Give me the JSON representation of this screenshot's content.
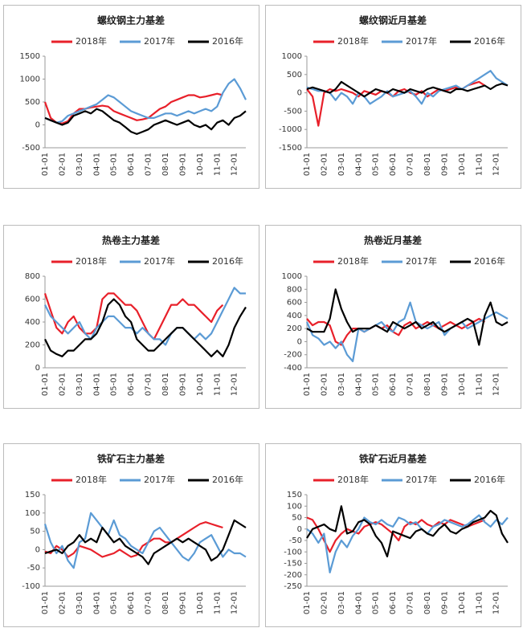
{
  "chart_data": [
    {
      "type": "line",
      "title": "螺纹钢主力基差",
      "categories": [
        "01-01",
        null,
        null,
        "02-01",
        null,
        null,
        "03-01",
        null,
        null,
        "04-01",
        null,
        null,
        "05-01",
        null,
        null,
        "06-01",
        null,
        null,
        "07-01",
        null,
        null,
        "08-01",
        null,
        null,
        "09-01",
        null,
        null,
        "10-01",
        null,
        null,
        "11-01",
        null,
        null,
        "12-01",
        null,
        null
      ],
      "ylim": [
        -500,
        1500
      ],
      "yticks": [
        -500,
        0,
        500,
        1000,
        1500
      ],
      "series": [
        {
          "name": "2018年",
          "color": "#e8202a",
          "values": [
            500,
            150,
            50,
            30,
            80,
            250,
            350,
            350,
            380,
            400,
            420,
            400,
            300,
            250,
            200,
            150,
            100,
            120,
            150,
            250,
            350,
            400,
            500,
            550,
            600,
            650,
            650,
            600,
            620,
            650,
            680,
            650,
            null,
            null,
            null,
            null
          ]
        },
        {
          "name": "2017年",
          "color": "#5b9bd5",
          "values": [
            150,
            100,
            50,
            80,
            200,
            250,
            300,
            350,
            400,
            450,
            550,
            650,
            600,
            500,
            400,
            300,
            250,
            200,
            150,
            150,
            200,
            250,
            250,
            200,
            250,
            300,
            250,
            300,
            350,
            300,
            400,
            700,
            900,
            1000,
            800,
            550
          ]
        },
        {
          "name": "2016年",
          "color": "#000000",
          "values": [
            150,
            100,
            50,
            0,
            50,
            200,
            250,
            300,
            250,
            350,
            300,
            200,
            100,
            50,
            -50,
            -150,
            -200,
            -150,
            -100,
            0,
            50,
            100,
            50,
            0,
            50,
            100,
            0,
            -50,
            0,
            -100,
            50,
            100,
            0,
            150,
            200,
            300
          ]
        }
      ]
    },
    {
      "type": "line",
      "title": "螺纹钢近月基差",
      "categories": [
        "01-01",
        null,
        null,
        "02-01",
        null,
        null,
        "03-01",
        null,
        null,
        "04-01",
        null,
        null,
        "05-01",
        null,
        null,
        "06-01",
        null,
        null,
        "07-01",
        null,
        null,
        "08-01",
        null,
        null,
        "09-01",
        null,
        null,
        "10-01",
        null,
        null,
        "11-01",
        null,
        null,
        "12-01",
        null,
        null
      ],
      "ylim": [
        -1500,
        1000
      ],
      "yticks": [
        -1500,
        -1000,
        -500,
        0,
        500,
        1000
      ],
      "series": [
        {
          "name": "2018年",
          "color": "#e8202a",
          "values": [
            100,
            -100,
            -900,
            0,
            100,
            50,
            100,
            50,
            0,
            -100,
            50,
            0,
            -50,
            50,
            0,
            -100,
            50,
            100,
            0,
            -50,
            50,
            -100,
            0,
            100,
            50,
            100,
            150,
            100,
            200,
            250,
            300,
            200,
            null,
            null,
            null,
            null
          ]
        },
        {
          "name": "2017年",
          "color": "#5b9bd5",
          "values": [
            150,
            100,
            50,
            50,
            0,
            -200,
            0,
            -100,
            -300,
            0,
            -100,
            -300,
            -200,
            -100,
            50,
            -100,
            -50,
            0,
            50,
            -100,
            -300,
            0,
            -100,
            50,
            100,
            150,
            200,
            100,
            200,
            300,
            400,
            500,
            600,
            400,
            300,
            200
          ]
        },
        {
          "name": "2016年",
          "color": "#000000",
          "values": [
            100,
            150,
            100,
            50,
            0,
            100,
            300,
            200,
            100,
            0,
            -100,
            0,
            100,
            50,
            0,
            100,
            50,
            0,
            100,
            50,
            0,
            100,
            150,
            100,
            50,
            0,
            100,
            100,
            50,
            100,
            150,
            200,
            100,
            200,
            250,
            200
          ]
        }
      ]
    },
    {
      "type": "line",
      "title": "热卷主力基差",
      "categories": [
        "01-01",
        null,
        null,
        "02-01",
        null,
        null,
        "03-01",
        null,
        null,
        "04-01",
        null,
        null,
        "05-01",
        null,
        null,
        "06-01",
        null,
        null,
        "07-01",
        null,
        null,
        "08-01",
        null,
        null,
        "09-01",
        null,
        null,
        "10-01",
        null,
        null,
        "11-01",
        null,
        null,
        "12-01",
        null,
        null
      ],
      "ylim": [
        0,
        800
      ],
      "yticks": [
        0,
        200,
        400,
        600,
        800
      ],
      "series": [
        {
          "name": "2018年",
          "color": "#e8202a",
          "values": [
            650,
            500,
            350,
            300,
            400,
            450,
            350,
            300,
            300,
            350,
            600,
            650,
            650,
            600,
            550,
            550,
            500,
            400,
            300,
            250,
            350,
            450,
            550,
            550,
            600,
            550,
            550,
            500,
            450,
            400,
            500,
            550,
            null,
            null,
            null,
            null
          ]
        },
        {
          "name": "2017年",
          "color": "#5b9bd5",
          "values": [
            550,
            450,
            400,
            350,
            300,
            350,
            400,
            300,
            250,
            350,
            400,
            450,
            450,
            400,
            350,
            350,
            300,
            350,
            300,
            250,
            250,
            200,
            300,
            350,
            350,
            300,
            250,
            300,
            250,
            300,
            400,
            500,
            600,
            700,
            650,
            650
          ]
        },
        {
          "name": "2016年",
          "color": "#000000",
          "values": [
            250,
            150,
            120,
            100,
            150,
            150,
            200,
            250,
            250,
            300,
            400,
            550,
            600,
            550,
            450,
            400,
            250,
            200,
            150,
            150,
            200,
            250,
            300,
            350,
            350,
            300,
            250,
            200,
            150,
            100,
            150,
            100,
            200,
            350,
            450,
            530
          ]
        }
      ]
    },
    {
      "type": "line",
      "title": "热卷近月基差",
      "categories": [
        "01-01",
        null,
        null,
        "02-01",
        null,
        null,
        "03-01",
        null,
        null,
        "04-01",
        null,
        null,
        "05-01",
        null,
        null,
        "06-01",
        null,
        null,
        "07-01",
        null,
        null,
        "08-01",
        null,
        null,
        "09-01",
        null,
        null,
        "10-01",
        null,
        null,
        "11-01",
        null,
        null,
        "12-01",
        null,
        null
      ],
      "ylim": [
        -400,
        1000
      ],
      "yticks": [
        -400,
        -200,
        0,
        200,
        400,
        600,
        800,
        1000
      ],
      "series": [
        {
          "name": "2018年",
          "color": "#e8202a",
          "values": [
            350,
            250,
            300,
            300,
            250,
            0,
            -50,
            100,
            200,
            200,
            150,
            200,
            250,
            200,
            250,
            150,
            100,
            250,
            300,
            200,
            250,
            300,
            250,
            200,
            250,
            300,
            250,
            200,
            250,
            300,
            350,
            300,
            null,
            null,
            null,
            null
          ]
        },
        {
          "name": "2017年",
          "color": "#5b9bd5",
          "values": [
            300,
            100,
            50,
            -50,
            0,
            -100,
            0,
            -200,
            -300,
            200,
            150,
            200,
            250,
            300,
            200,
            150,
            300,
            350,
            600,
            300,
            250,
            200,
            250,
            300,
            100,
            200,
            250,
            300,
            200,
            250,
            300,
            350,
            400,
            450,
            400,
            350
          ]
        },
        {
          "name": "2016年",
          "color": "#000000",
          "values": [
            200,
            150,
            150,
            150,
            350,
            800,
            500,
            300,
            150,
            200,
            200,
            200,
            250,
            200,
            150,
            300,
            250,
            200,
            250,
            300,
            200,
            250,
            300,
            200,
            150,
            200,
            250,
            300,
            350,
            300,
            -50,
            400,
            600,
            300,
            250,
            300
          ]
        }
      ]
    },
    {
      "type": "line",
      "title": "铁矿石主力基差",
      "categories": [
        "01-01",
        null,
        null,
        "02-01",
        null,
        null,
        "03-01",
        null,
        null,
        "04-01",
        null,
        null,
        "05-01",
        null,
        null,
        "06-01",
        null,
        null,
        "07-01",
        null,
        null,
        "08-01",
        null,
        null,
        "09-01",
        null,
        null,
        "10-01",
        null,
        null,
        "11-01",
        null,
        null,
        "12-01",
        null,
        null
      ],
      "ylim": [
        -100,
        150
      ],
      "yticks": [
        -100,
        -50,
        0,
        50,
        100,
        150
      ],
      "series": [
        {
          "name": "2018年",
          "color": "#e8202a",
          "values": [
            -5,
            -10,
            10,
            0,
            -20,
            -10,
            10,
            5,
            0,
            -10,
            -20,
            -15,
            -10,
            0,
            -10,
            -20,
            -15,
            10,
            20,
            30,
            30,
            20,
            20,
            30,
            40,
            50,
            60,
            70,
            75,
            70,
            65,
            60,
            null,
            null,
            null,
            null
          ]
        },
        {
          "name": "2017年",
          "color": "#5b9bd5",
          "values": [
            70,
            20,
            -10,
            10,
            -30,
            -50,
            20,
            30,
            100,
            80,
            60,
            40,
            80,
            40,
            30,
            10,
            0,
            -10,
            20,
            50,
            60,
            40,
            20,
            0,
            -20,
            -30,
            -10,
            20,
            30,
            40,
            10,
            -20,
            0,
            -10,
            -10,
            -20
          ]
        },
        {
          "name": "2016年",
          "color": "#000000",
          "values": [
            -10,
            -5,
            0,
            -10,
            10,
            20,
            40,
            20,
            30,
            20,
            60,
            40,
            20,
            30,
            10,
            0,
            -10,
            -20,
            -40,
            -10,
            0,
            10,
            20,
            30,
            20,
            30,
            20,
            10,
            0,
            -30,
            -20,
            0,
            40,
            80,
            70,
            60
          ]
        }
      ]
    },
    {
      "type": "line",
      "title": "铁矿石近月基差",
      "categories": [
        "01-01",
        null,
        null,
        "02-01",
        null,
        null,
        "03-01",
        null,
        null,
        "04-01",
        null,
        null,
        "05-01",
        null,
        null,
        "06-01",
        null,
        null,
        "07-01",
        null,
        null,
        "08-01",
        null,
        null,
        "09-01",
        null,
        null,
        "10-01",
        null,
        null,
        "11-01",
        null,
        null,
        "12-01",
        null,
        null
      ],
      "ylim": [
        -250,
        150
      ],
      "yticks": [
        -250,
        -200,
        -150,
        -100,
        -50,
        0,
        50,
        100,
        150
      ],
      "series": [
        {
          "name": "2018年",
          "color": "#e8202a",
          "values": [
            50,
            40,
            0,
            -50,
            -100,
            -50,
            -20,
            0,
            -10,
            -20,
            10,
            20,
            30,
            20,
            0,
            -20,
            -50,
            10,
            30,
            20,
            40,
            20,
            10,
            30,
            20,
            40,
            30,
            20,
            10,
            20,
            30,
            40,
            null,
            null,
            null,
            null
          ]
        },
        {
          "name": "2017年",
          "color": "#5b9bd5",
          "values": [
            0,
            -20,
            -60,
            -20,
            -190,
            -100,
            -50,
            -80,
            -30,
            0,
            50,
            30,
            20,
            40,
            20,
            10,
            50,
            40,
            20,
            30,
            0,
            -20,
            10,
            20,
            40,
            30,
            20,
            10,
            20,
            40,
            60,
            30,
            10,
            40,
            20,
            50
          ]
        },
        {
          "name": "2016年",
          "color": "#000000",
          "values": [
            -40,
            0,
            10,
            20,
            0,
            -10,
            100,
            -20,
            -10,
            30,
            40,
            20,
            -30,
            -60,
            -120,
            -10,
            -20,
            -30,
            -40,
            -10,
            0,
            -20,
            -30,
            0,
            20,
            -10,
            -20,
            0,
            10,
            30,
            40,
            50,
            80,
            60,
            -20,
            -60
          ]
        }
      ]
    }
  ]
}
